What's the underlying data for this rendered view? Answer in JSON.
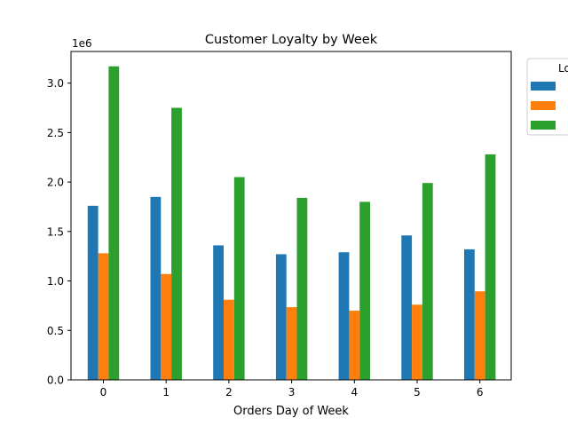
{
  "chart_data": {
    "type": "bar",
    "title": "Customer Loyalty by Week",
    "xlabel": "Orders Day of Week",
    "ylabel": "",
    "offset_label": "1e6",
    "y_scale": 1000000,
    "ylim": [
      0,
      3320000
    ],
    "yticks": [
      0,
      500000,
      1000000,
      1500000,
      2000000,
      2500000,
      3000000
    ],
    "ytick_labels": [
      "0.0",
      "0.5",
      "1.0",
      "1.5",
      "2.0",
      "2.5",
      "3.0"
    ],
    "categories": [
      "0",
      "1",
      "2",
      "3",
      "4",
      "5",
      "6"
    ],
    "legend": {
      "title": "Lo",
      "placement": "upper-right-outside"
    },
    "grid": false,
    "series": [
      {
        "name": "",
        "color": "#1f77b4",
        "values": [
          1760000,
          1850000,
          1360000,
          1270000,
          1290000,
          1460000,
          1320000
        ]
      },
      {
        "name": "",
        "color": "#ff7f0e",
        "values": [
          1280000,
          1070000,
          810000,
          735000,
          700000,
          760000,
          895000
        ]
      },
      {
        "name": "",
        "color": "#2ca02c",
        "values": [
          3170000,
          2750000,
          2050000,
          1840000,
          1800000,
          1990000,
          2280000
        ]
      }
    ]
  }
}
